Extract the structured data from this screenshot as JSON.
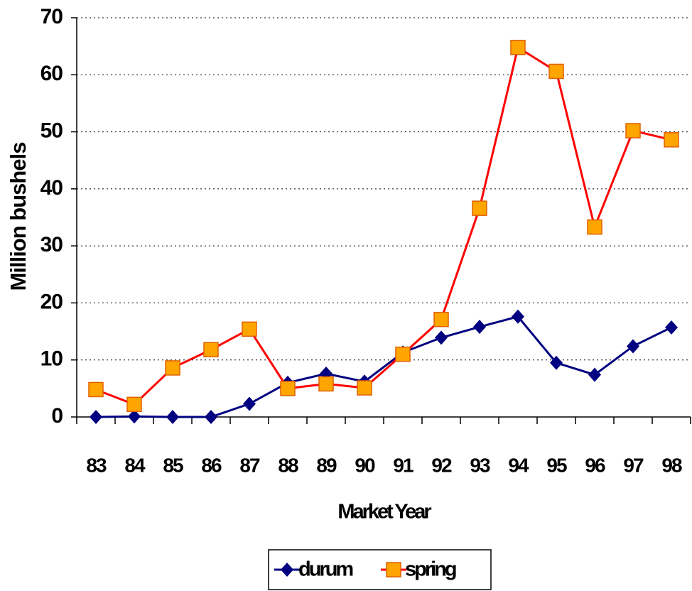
{
  "chart_data": {
    "type": "line",
    "x_label": "Market Year",
    "y_label": "Million bushels",
    "categories": [
      "83",
      "84",
      "85",
      "86",
      "87",
      "88",
      "89",
      "90",
      "91",
      "92",
      "93",
      "94",
      "95",
      "96",
      "97",
      "98"
    ],
    "series": [
      {
        "name": "durum",
        "color": "#000080",
        "marker": "diamond",
        "values": [
          0,
          0.1,
          0,
          0,
          2.3,
          6,
          7.6,
          6.2,
          11.3,
          13.9,
          15.8,
          17.6,
          9.5,
          7.4,
          12.4,
          15.7
        ]
      },
      {
        "name": "spring",
        "color": "#ff0000",
        "marker": "square",
        "marker_color": "#ffa500",
        "values": [
          4.8,
          2.2,
          8.6,
          11.8,
          15.4,
          5,
          5.8,
          5.1,
          11,
          17.1,
          36.6,
          64.8,
          60.6,
          33.3,
          50.2,
          48.6
        ]
      }
    ],
    "ylim": [
      0,
      70
    ],
    "yticks": [
      0,
      10,
      20,
      30,
      40,
      50,
      60,
      70
    ],
    "grid": true,
    "legend": "bottom"
  }
}
